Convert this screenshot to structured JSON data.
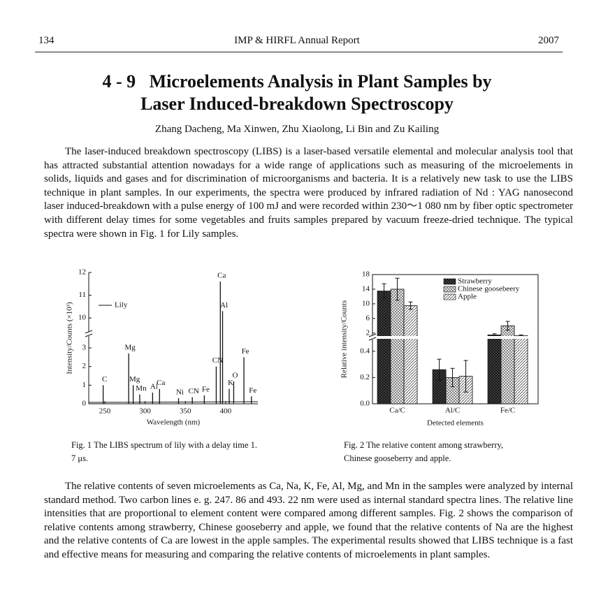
{
  "header": {
    "page_number": "134",
    "journal": "IMP & HIRFL Annual Report",
    "year": "2007"
  },
  "article": {
    "number": "4 - 9",
    "title_lines": [
      "Microelements Analysis in Plant Samples by",
      "Laser Induced-breakdown Spectroscopy"
    ],
    "authors": "Zhang Dacheng, Ma Xinwen, Zhu Xiaolong, Li Bin and Zu Kailing",
    "paragraphs": [
      "The laser-induced breakdown spectroscopy (LIBS) is a laser-based versatile elemental and molecular analysis tool that has attracted substantial attention nowadays for a wide range of applications such as measuring of the microelements in solids, liquids and gases and for discrimination of microorganisms and bacteria. It is a relatively new task to use the LIBS technique in plant samples. In our experiments, the spectra were produced by infrared radiation of Nd : YAG nanosecond laser induced-breakdown with a pulse energy of 100 mJ and were recorded within 230～1 080 nm by fiber optic spectrometer with different delay times for some vegetables and fruits samples prepared by vacuum freeze-dried technique. The typical spectra were shown in Fig. 1 for Lily samples.",
      "The relative contents of seven microelements as Ca, Na, K, Fe, Al, Mg, and Mn in the samples were analyzed by internal standard method. Two carbon lines e. g. 247. 86 and 493. 22 nm were used as internal standard spectra lines. The relative line intensities that are proportional to element content were compared among different samples. Fig. 2 shows the comparison of relative contents among strawberry, Chinese gooseberry and apple, we found that the relative contents of Na are the highest and the relative contents of Ca are lowest in the apple samples. The experimental results showed that LIBS technique is a fast and effective means for measuring and comparing the relative contents of microelements in plant samples."
    ]
  },
  "chart_data": [
    {
      "type": "spectrum",
      "caption": "Fig. 1  The LIBS spectrum of lily with a delay time 1. 7 μs.",
      "x_label": "Wavelength (nm)",
      "y_label": "Intensity/Counts (×10³)",
      "series_name": "Lily",
      "color": "#111111",
      "xlim": [
        230,
        440
      ],
      "xticks": [
        250,
        300,
        350,
        400
      ],
      "ylim": [
        0,
        12
      ],
      "ybreak": [
        3.3,
        9.7
      ],
      "yticks": [
        0,
        1,
        2,
        3,
        10,
        11,
        12
      ],
      "x": [
        247.9,
        279.6,
        285.2,
        293.3,
        309.3,
        317.9,
        341.5,
        358.6,
        373.5,
        388.3,
        393.4,
        396.2,
        404.4,
        410,
        422.7,
        432
      ],
      "values": [
        1.0,
        2.7,
        1.0,
        0.5,
        0.6,
        0.8,
        0.3,
        0.35,
        0.45,
        2.0,
        11.6,
        10.3,
        0.8,
        1.2,
        2.5,
        0.4
      ],
      "peak_labels": [
        "C",
        "Mg",
        "Mg",
        "Mn",
        "Al",
        "Ca",
        "Ni",
        "CN",
        "Fe",
        "CN",
        "Ca",
        "Al",
        "K",
        "O",
        "Fe",
        "Fe"
      ]
    },
    {
      "type": "bar",
      "caption": "Fig. 2  The relative content among strawberry, Chinese gooseberry and apple.",
      "x_label": "Detected elements",
      "y_label": "Relative intensity/Counts",
      "categories": [
        "Ca/C",
        "Al/C",
        "Fe/C"
      ],
      "ylim": [
        0,
        18
      ],
      "ybreak": [
        0.5,
        1
      ],
      "yticks": [
        {
          "value": 0,
          "label": "0.0"
        },
        0.2,
        0.4,
        2,
        6,
        10,
        14,
        18
      ],
      "series": [
        {
          "name": "Strawberry",
          "pattern": "crosshatch",
          "values": [
            13.5,
            0.26,
            1.5
          ],
          "errors": [
            2,
            0.08,
            0.3
          ]
        },
        {
          "name": "Chinese goosebeery",
          "pattern": "checker",
          "values": [
            14,
            0.2,
            4
          ],
          "errors": [
            3,
            0.07,
            1.2
          ]
        },
        {
          "name": "Apple",
          "pattern": "diagonal",
          "values": [
            9.5,
            0.21,
            1.3
          ],
          "errors": [
            1,
            0.12,
            0.2
          ]
        }
      ]
    }
  ]
}
